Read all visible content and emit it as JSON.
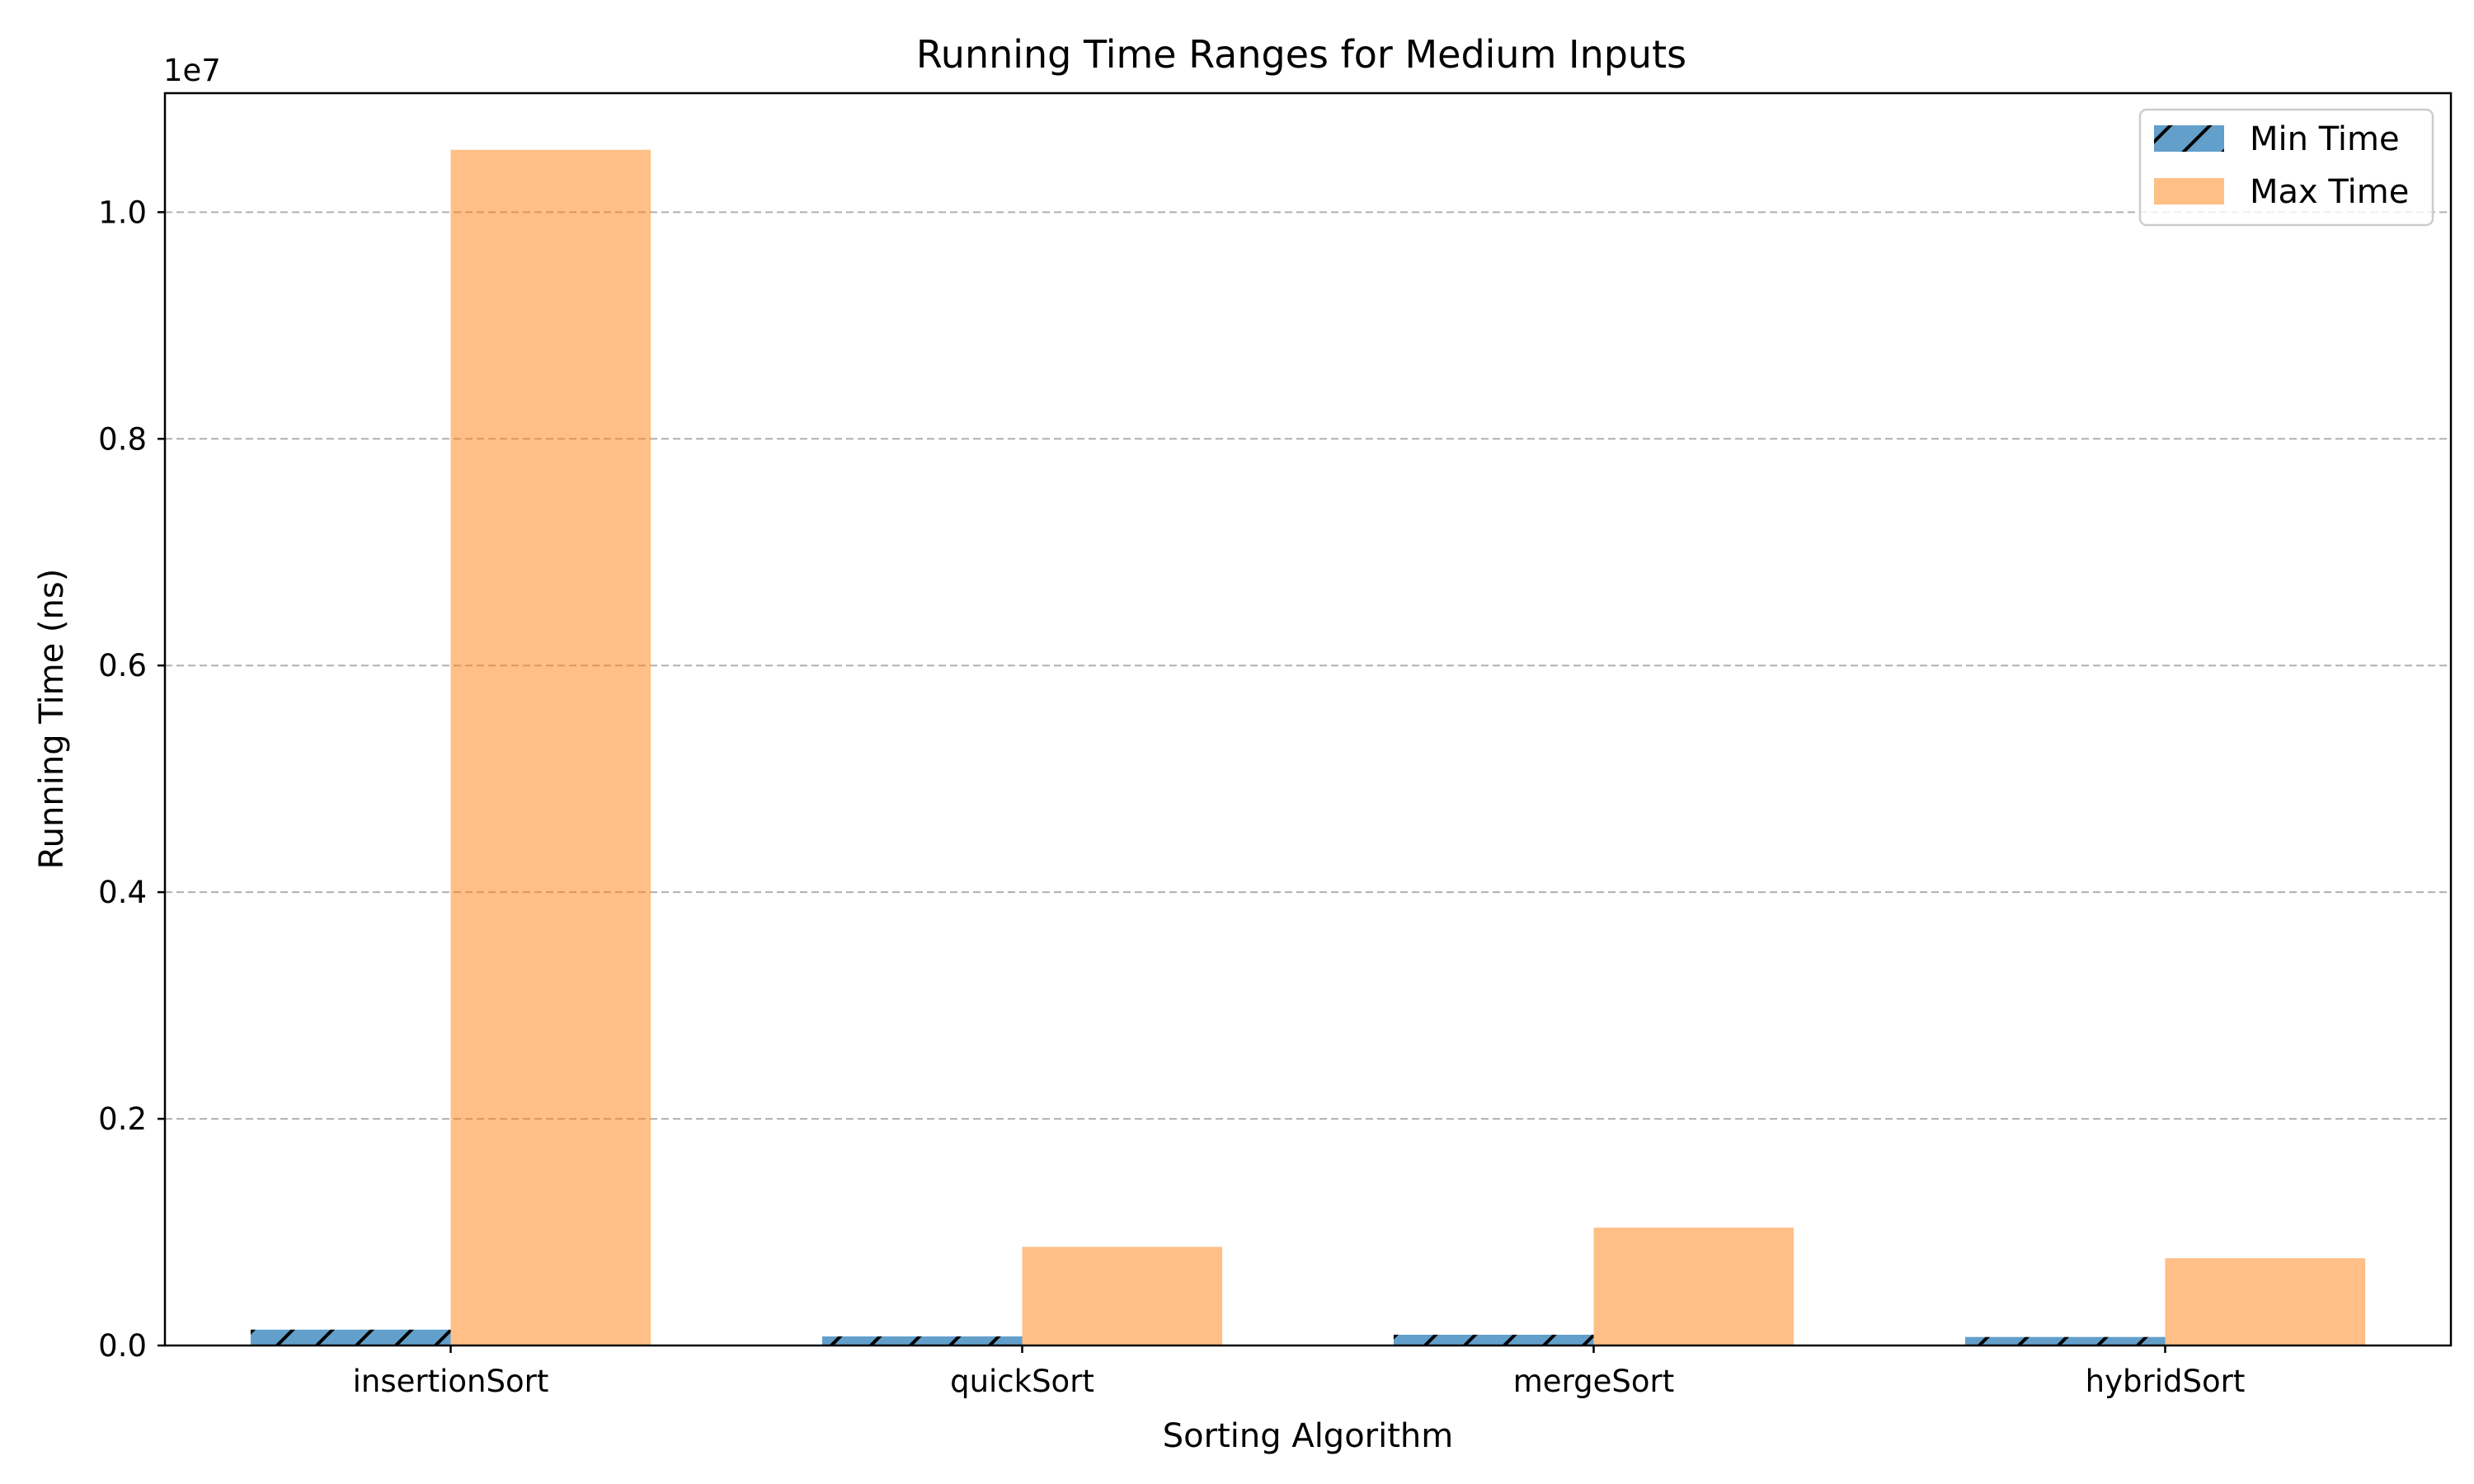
{
  "chart_data": {
    "type": "bar",
    "title": "Running Time Ranges for Medium Inputs",
    "xlabel": "Sorting Algorithm",
    "ylabel": "Running Time (ns)",
    "y_offset_label": "1e7",
    "categories": [
      "insertionSort",
      "quickSort",
      "mergeSort",
      "hybridSort"
    ],
    "series": [
      {
        "name": "Min Time",
        "values": [
          140000,
          80000,
          95000,
          75000
        ],
        "color": "#1f77b4",
        "alpha": 0.7,
        "hatch": "//"
      },
      {
        "name": "Max Time",
        "values": [
          10550000,
          870000,
          1040000,
          770000
        ],
        "color": "#ff7f0e",
        "alpha": 0.5,
        "hatch": ""
      }
    ],
    "ylim": [
      0,
      11050000
    ],
    "yticks": [
      0,
      2000000,
      4000000,
      6000000,
      8000000,
      10000000
    ],
    "ytick_labels": [
      "0.0",
      "0.2",
      "0.4",
      "0.6",
      "0.8",
      "1.0"
    ],
    "grid": {
      "y": true,
      "style": "dashed",
      "color": "#b0b0b0"
    },
    "legend_position": "top-right"
  }
}
